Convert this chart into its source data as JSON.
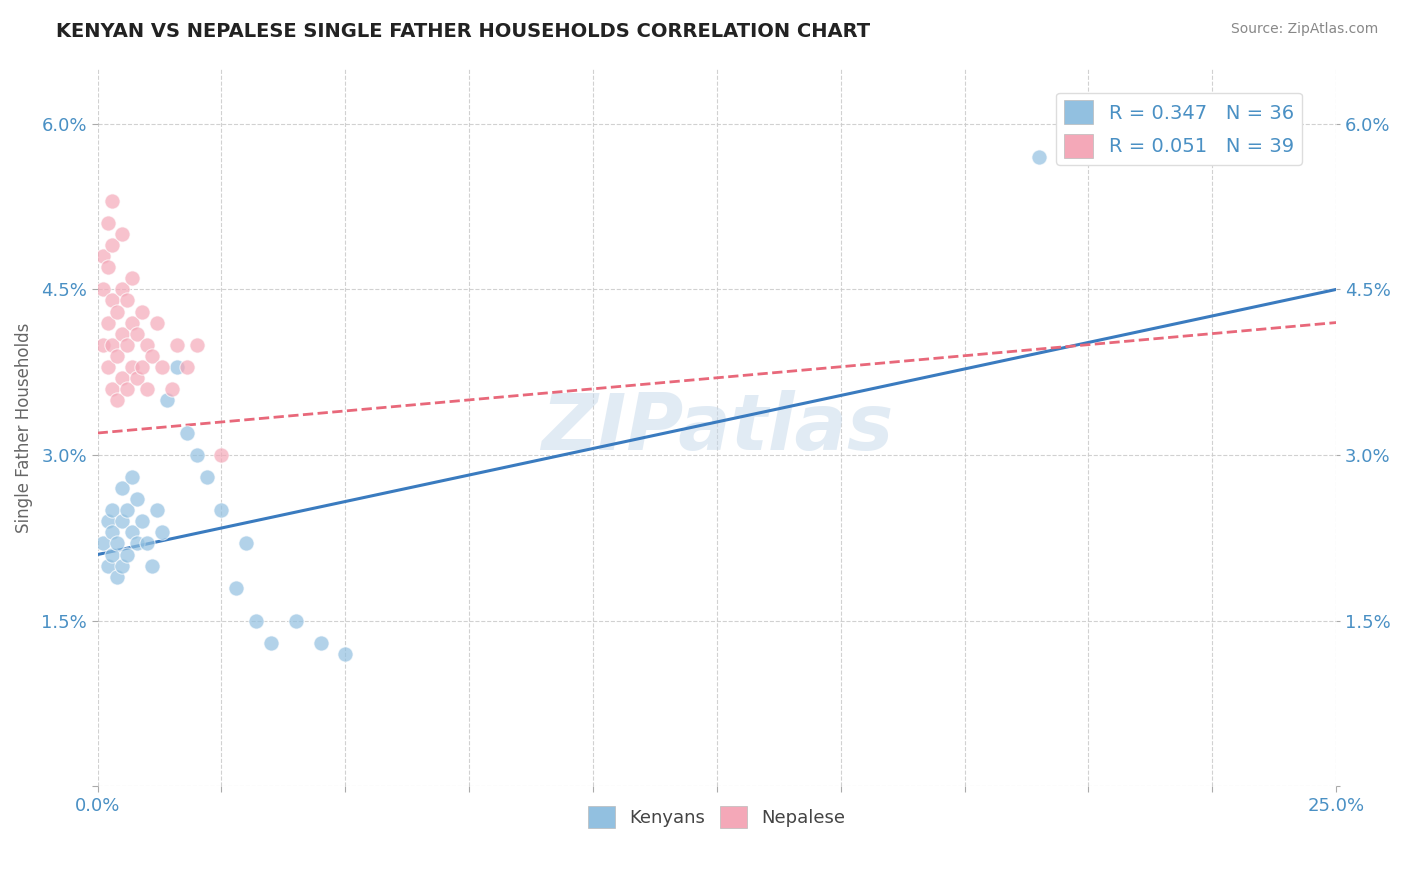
{
  "title": "KENYAN VS NEPALESE SINGLE FATHER HOUSEHOLDS CORRELATION CHART",
  "source": "Source: ZipAtlas.com",
  "ylabel": "Single Father Households",
  "xlim": [
    0.0,
    0.25
  ],
  "ylim": [
    0.0,
    0.065
  ],
  "xticks": [
    0.0,
    0.025,
    0.05,
    0.075,
    0.1,
    0.125,
    0.15,
    0.175,
    0.2,
    0.225,
    0.25
  ],
  "yticks": [
    0.0,
    0.015,
    0.03,
    0.045,
    0.06
  ],
  "kenyan_R": 0.347,
  "kenyan_N": 36,
  "nepalese_R": 0.051,
  "nepalese_N": 39,
  "blue_color": "#92c0e0",
  "pink_color": "#f4a8b8",
  "blue_line_color": "#3a7bbf",
  "pink_line_color": "#e8687a",
  "watermark": "ZIPatlas",
  "kenyan_x": [
    0.001,
    0.002,
    0.002,
    0.003,
    0.003,
    0.003,
    0.004,
    0.004,
    0.005,
    0.005,
    0.005,
    0.006,
    0.006,
    0.007,
    0.007,
    0.008,
    0.008,
    0.009,
    0.01,
    0.011,
    0.012,
    0.013,
    0.014,
    0.016,
    0.018,
    0.02,
    0.022,
    0.025,
    0.028,
    0.03,
    0.032,
    0.035,
    0.04,
    0.045,
    0.05,
    0.19
  ],
  "kenyan_y": [
    0.022,
    0.02,
    0.024,
    0.021,
    0.025,
    0.023,
    0.019,
    0.022,
    0.02,
    0.024,
    0.027,
    0.021,
    0.025,
    0.023,
    0.028,
    0.022,
    0.026,
    0.024,
    0.022,
    0.02,
    0.025,
    0.023,
    0.035,
    0.038,
    0.032,
    0.03,
    0.028,
    0.025,
    0.018,
    0.022,
    0.015,
    0.013,
    0.015,
    0.013,
    0.012,
    0.057
  ],
  "nepalese_x": [
    0.001,
    0.001,
    0.001,
    0.002,
    0.002,
    0.002,
    0.002,
    0.003,
    0.003,
    0.003,
    0.003,
    0.003,
    0.004,
    0.004,
    0.004,
    0.005,
    0.005,
    0.005,
    0.005,
    0.006,
    0.006,
    0.006,
    0.007,
    0.007,
    0.007,
    0.008,
    0.008,
    0.009,
    0.009,
    0.01,
    0.01,
    0.011,
    0.012,
    0.013,
    0.015,
    0.016,
    0.018,
    0.02,
    0.025
  ],
  "nepalese_y": [
    0.04,
    0.045,
    0.048,
    0.038,
    0.042,
    0.047,
    0.051,
    0.036,
    0.04,
    0.044,
    0.049,
    0.053,
    0.035,
    0.039,
    0.043,
    0.037,
    0.041,
    0.045,
    0.05,
    0.036,
    0.04,
    0.044,
    0.038,
    0.042,
    0.046,
    0.037,
    0.041,
    0.038,
    0.043,
    0.036,
    0.04,
    0.039,
    0.042,
    0.038,
    0.036,
    0.04,
    0.038,
    0.04,
    0.03
  ]
}
